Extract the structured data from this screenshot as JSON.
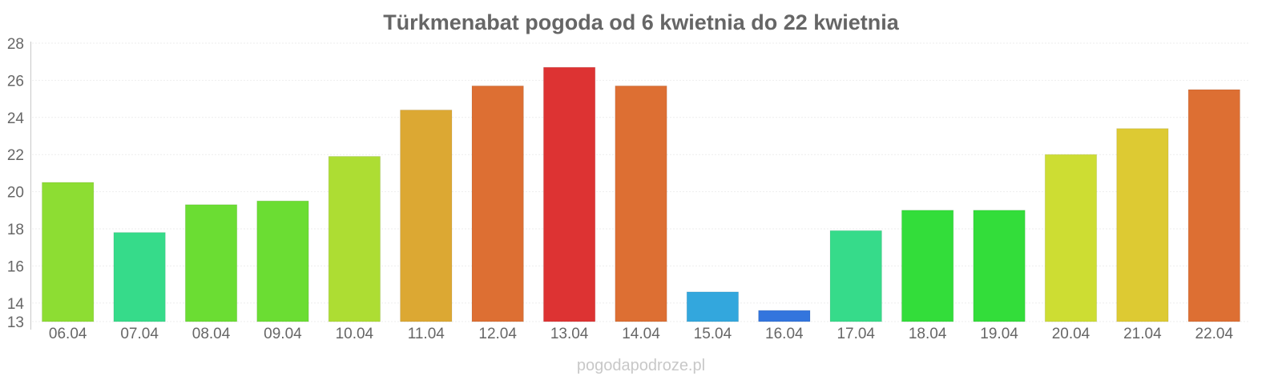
{
  "chart_data": {
    "type": "bar",
    "title": "Türkmenabat pogoda od 6 kwietnia do 22 kwietnia",
    "categories": [
      "06.04",
      "07.04",
      "08.04",
      "09.04",
      "10.04",
      "11.04",
      "12.04",
      "13.04",
      "14.04",
      "15.04",
      "16.04",
      "17.04",
      "18.04",
      "19.04",
      "20.04",
      "21.04",
      "22.04"
    ],
    "values": [
      20.5,
      17.8,
      19.3,
      19.5,
      21.9,
      24.4,
      25.7,
      26.7,
      25.7,
      14.6,
      13.6,
      17.9,
      19.0,
      19.0,
      22.0,
      23.4,
      25.5
    ],
    "colors": [
      "#8ddd33",
      "#36db8a",
      "#6bdd33",
      "#6bdd33",
      "#addd33",
      "#dca833",
      "#dd6f33",
      "#dd3333",
      "#dd6f33",
      "#33a7dd",
      "#3375dd",
      "#36db8a",
      "#33dd3a",
      "#33dd3a",
      "#cddd33",
      "#ddca33",
      "#dd6f33"
    ],
    "ylim": [
      13,
      28
    ],
    "yticks": [
      13,
      14,
      16,
      18,
      20,
      22,
      24,
      26,
      28
    ],
    "grid": true,
    "xlabel": "",
    "ylabel": ""
  },
  "watermark": "pogodapodroze.pl"
}
